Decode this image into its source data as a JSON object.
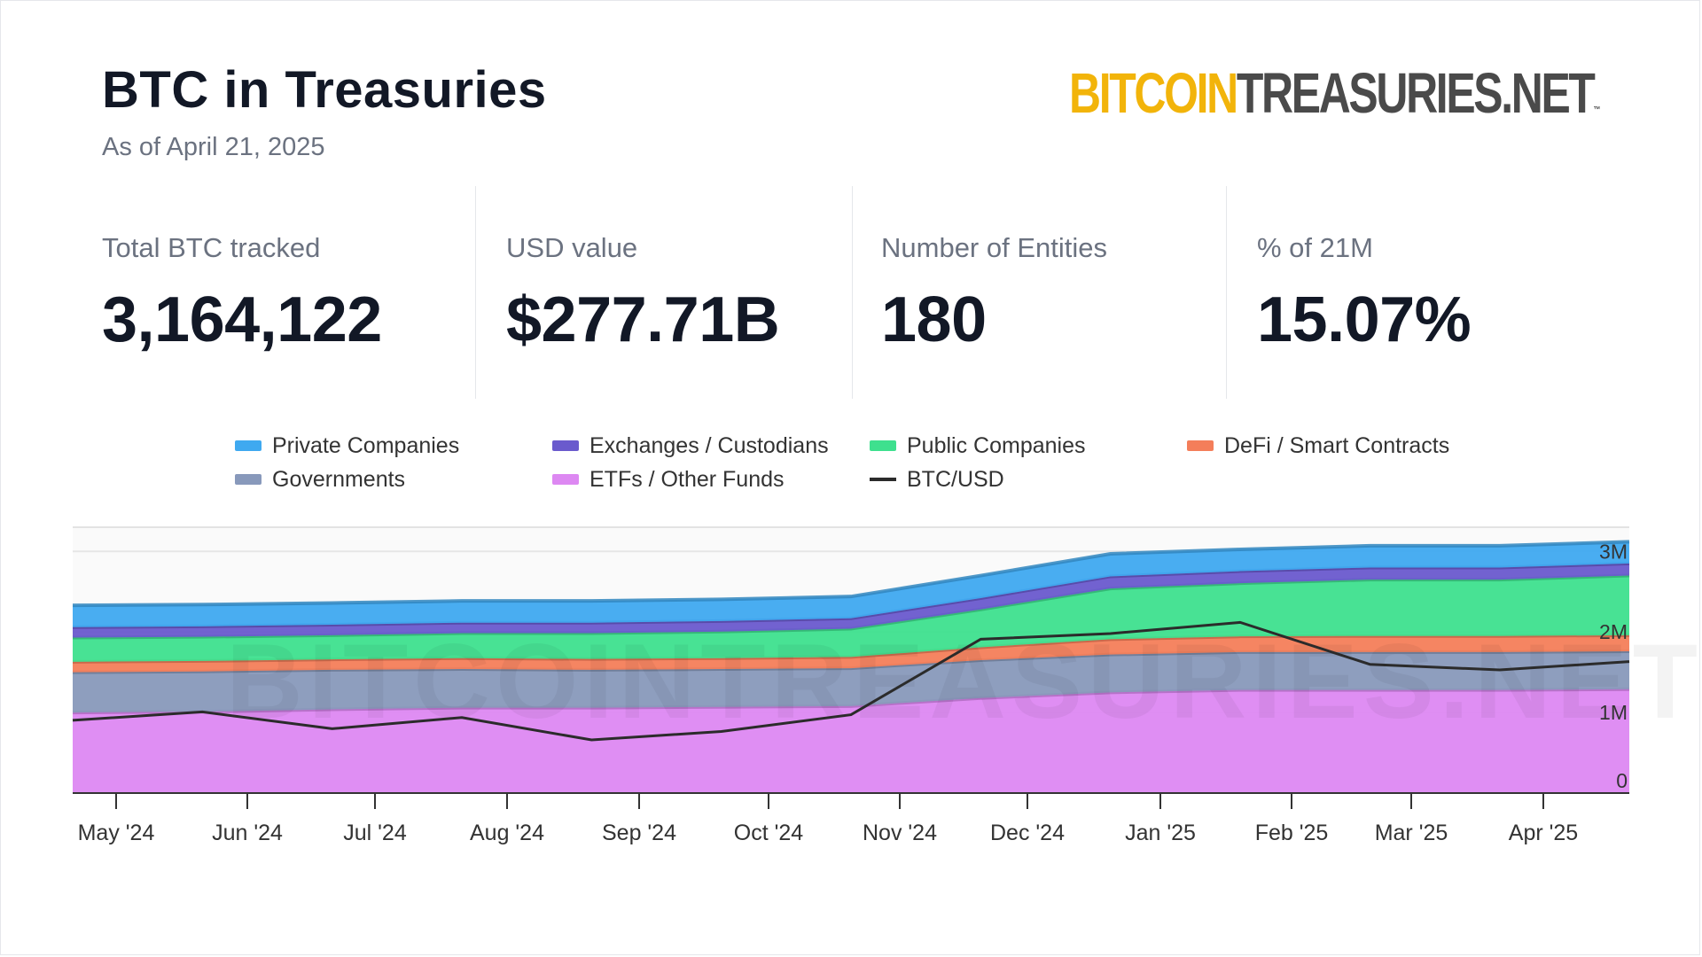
{
  "header": {
    "title": "BTC in Treasuries",
    "subtitle": "As of April 21, 2025",
    "brand_part1": "BITCOIN",
    "brand_part2": "TREASURIES",
    "brand_part3": ".NET",
    "brand_tm": "™"
  },
  "stats": [
    {
      "label": "Total BTC tracked",
      "value": "3,164,122"
    },
    {
      "label": "USD value",
      "value": "$277.71B"
    },
    {
      "label": "Number of Entities",
      "value": "180"
    },
    {
      "label": "% of 21M",
      "value": "15.07%"
    }
  ],
  "chart_data": {
    "type": "area",
    "stacked": true,
    "title": "",
    "watermark": "BITCOINTREASURIES.NET",
    "x_labels": [
      "May '24",
      "Jun '24",
      "Jul '24",
      "Aug '24",
      "Sep '24",
      "Oct '24",
      "Nov '24",
      "Dec '24",
      "Jan '25",
      "Feb '25",
      "Mar '25",
      "Apr '25"
    ],
    "x": [
      "2024-04-21",
      "2024-05-21",
      "2024-06-21",
      "2024-07-21",
      "2024-08-21",
      "2024-09-21",
      "2024-10-21",
      "2024-11-21",
      "2024-12-21",
      "2025-01-21",
      "2025-02-21",
      "2025-03-21",
      "2025-04-21"
    ],
    "y_ticks": [
      "0",
      "1M",
      "2M",
      "3M"
    ],
    "ylim": [
      0,
      3300000
    ],
    "grid": true,
    "legend_position": "top",
    "series": [
      {
        "name": "ETFs / Other Funds",
        "color": "#dd88f2",
        "values": [
          1000000,
          1010000,
          1040000,
          1060000,
          1060000,
          1070000,
          1080000,
          1180000,
          1250000,
          1280000,
          1280000,
          1280000,
          1290000
        ]
      },
      {
        "name": "Governments",
        "color": "#8899bb",
        "values": [
          500000,
          500000,
          490000,
          480000,
          470000,
          470000,
          470000,
          470000,
          470000,
          470000,
          470000,
          470000,
          470000
        ]
      },
      {
        "name": "DeFi / Smart Contracts",
        "color": "#f47e5a",
        "values": [
          130000,
          130000,
          130000,
          135000,
          135000,
          135000,
          140000,
          160000,
          190000,
          195000,
          200000,
          200000,
          200000
        ]
      },
      {
        "name": "Public Companies",
        "color": "#3ee08e",
        "values": [
          300000,
          300000,
          300000,
          310000,
          320000,
          330000,
          350000,
          470000,
          630000,
          660000,
          700000,
          700000,
          740000
        ]
      },
      {
        "name": "Exchanges / Custodians",
        "color": "#6a5acd",
        "values": [
          130000,
          130000,
          130000,
          130000,
          130000,
          130000,
          130000,
          140000,
          150000,
          150000,
          150000,
          150000,
          150000
        ]
      },
      {
        "name": "Private Companies",
        "color": "#3fa9f0",
        "values": [
          270000,
          270000,
          270000,
          270000,
          270000,
          270000,
          270000,
          280000,
          280000,
          270000,
          270000,
          270000,
          270000
        ]
      }
    ],
    "line_series": {
      "name": "BTC/USD",
      "color": "#2b2b2b",
      "values": [
        66000,
        69000,
        63000,
        67000,
        59000,
        62000,
        68000,
        95000,
        97000,
        101000,
        86000,
        84000,
        87000
      ]
    }
  },
  "legend": [
    {
      "name": "Private Companies",
      "color": "#3fa9f0",
      "kind": "area"
    },
    {
      "name": "Exchanges / Custodians",
      "color": "#6a5acd",
      "kind": "area"
    },
    {
      "name": "Public Companies",
      "color": "#3ee08e",
      "kind": "area"
    },
    {
      "name": "DeFi / Smart Contracts",
      "color": "#f47e5a",
      "kind": "area"
    },
    {
      "name": "Governments",
      "color": "#8899bb",
      "kind": "area"
    },
    {
      "name": "ETFs / Other Funds",
      "color": "#dd88f2",
      "kind": "area"
    },
    {
      "name": "BTC/USD",
      "color": "#2b2b2b",
      "kind": "line"
    }
  ]
}
